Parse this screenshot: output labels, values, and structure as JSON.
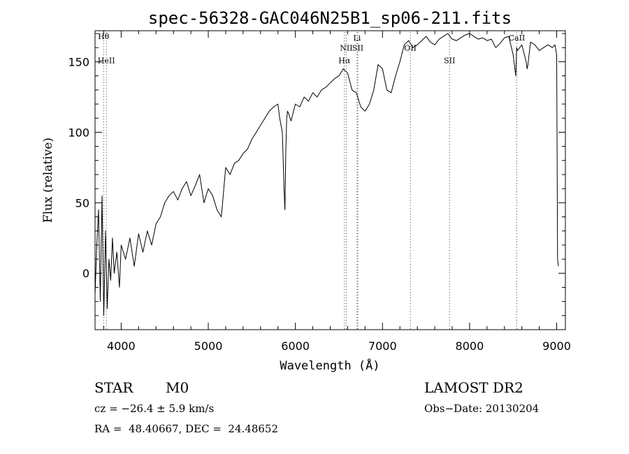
{
  "chart_data": {
    "type": "line",
    "title": "spec-56328-GAC046N25B1_sp06-211.fits",
    "xlabel": "Wavelength (Å)",
    "ylabel": "Flux (relative)",
    "xlim": [
      3700,
      9100
    ],
    "ylim": [
      -40,
      172
    ],
    "x_ticks": [
      {
        "value": 4000,
        "label": "4000"
      },
      {
        "value": 5000,
        "label": "5000"
      },
      {
        "value": 6000,
        "label": "6000"
      },
      {
        "value": 7000,
        "label": "7000"
      },
      {
        "value": 8000,
        "label": "8000"
      },
      {
        "value": 9000,
        "label": "9000"
      }
    ],
    "y_ticks": [
      {
        "value": 0,
        "label": "0"
      },
      {
        "value": 50,
        "label": "50"
      },
      {
        "value": 100,
        "label": "100"
      },
      {
        "value": 150,
        "label": "150"
      }
    ],
    "grid": false,
    "legend": "none",
    "line_color": "#000000",
    "spectral_lines": [
      {
        "label": "Hθ",
        "wavelength": 3798,
        "label_flux": 166
      },
      {
        "label": "HeII",
        "wavelength": 3830,
        "label_flux": 149
      },
      {
        "label": "Hα",
        "wavelength": 6563,
        "label_flux": 149
      },
      {
        "label": "NII",
        "wavelength": 6584,
        "label_flux": 158
      },
      {
        "label": "SII",
        "wavelength": 6717,
        "label_flux": 158
      },
      {
        "label": "Li",
        "wavelength": 6708,
        "label_flux": 165
      },
      {
        "label": "OII",
        "wavelength": 7320,
        "label_flux": 158
      },
      {
        "label": "SII",
        "wavelength": 7770,
        "label_flux": 149
      },
      {
        "label": "CaII",
        "wavelength": 8542,
        "label_flux": 165
      }
    ],
    "series": [
      {
        "x": [
          3700,
          3720,
          3740,
          3760,
          3780,
          3800,
          3820,
          3840,
          3860,
          3880,
          3900,
          3920,
          3950,
          3980,
          4000,
          4050,
          4100,
          4150,
          4200,
          4250,
          4300,
          4350,
          4400,
          4450,
          4500,
          4550,
          4600,
          4650,
          4700,
          4750,
          4800,
          4850,
          4900,
          4950,
          5000,
          5050,
          5100,
          5150,
          5200,
          5250,
          5300,
          5350,
          5400,
          5450,
          5500,
          5550,
          5600,
          5650,
          5700,
          5750,
          5800,
          5820,
          5850,
          5870,
          5880,
          5890,
          5900,
          5910,
          5930,
          5950,
          6000,
          6050,
          6100,
          6150,
          6200,
          6250,
          6300,
          6350,
          6400,
          6450,
          6500,
          6550,
          6600,
          6650,
          6700,
          6750,
          6800,
          6850,
          6900,
          6950,
          7000,
          7050,
          7100,
          7150,
          7200,
          7250,
          7300,
          7350,
          7400,
          7450,
          7500,
          7550,
          7600,
          7650,
          7700,
          7750,
          7800,
          7850,
          7900,
          7950,
          8000,
          8050,
          8100,
          8150,
          8200,
          8250,
          8300,
          8350,
          8400,
          8450,
          8500,
          8530,
          8540,
          8550,
          8600,
          8650,
          8660,
          8670,
          8700,
          8750,
          8800,
          8850,
          8900,
          8950,
          8980,
          9000,
          9010,
          9020
        ],
        "y": [
          -15,
          20,
          45,
          -20,
          55,
          -30,
          30,
          -25,
          10,
          -5,
          25,
          0,
          15,
          -10,
          20,
          10,
          25,
          5,
          28,
          15,
          30,
          20,
          35,
          40,
          50,
          55,
          58,
          52,
          60,
          65,
          55,
          62,
          70,
          50,
          60,
          55,
          45,
          40,
          75,
          70,
          78,
          80,
          85,
          88,
          95,
          100,
          105,
          110,
          115,
          118,
          120,
          110,
          100,
          60,
          45,
          85,
          110,
          115,
          112,
          108,
          120,
          118,
          125,
          122,
          128,
          125,
          130,
          132,
          135,
          138,
          140,
          145,
          142,
          130,
          128,
          118,
          115,
          120,
          130,
          148,
          145,
          130,
          128,
          140,
          150,
          162,
          165,
          160,
          162,
          165,
          168,
          164,
          162,
          166,
          168,
          170,
          166,
          165,
          167,
          169,
          170,
          168,
          166,
          167,
          165,
          166,
          160,
          163,
          167,
          168,
          155,
          140,
          160,
          158,
          162,
          150,
          145,
          148,
          164,
          162,
          158,
          160,
          162,
          160,
          162,
          155,
          10,
          5
        ]
      }
    ]
  },
  "footer": {
    "object": "STAR",
    "subclass": "M0",
    "survey": "LAMOST DR2",
    "cz": "cz = −26.4 ± 5.9 km/s",
    "obs_date": "Obs−Date: 20130204",
    "coords": "RA =  48.40667, DEC =  24.48652"
  }
}
